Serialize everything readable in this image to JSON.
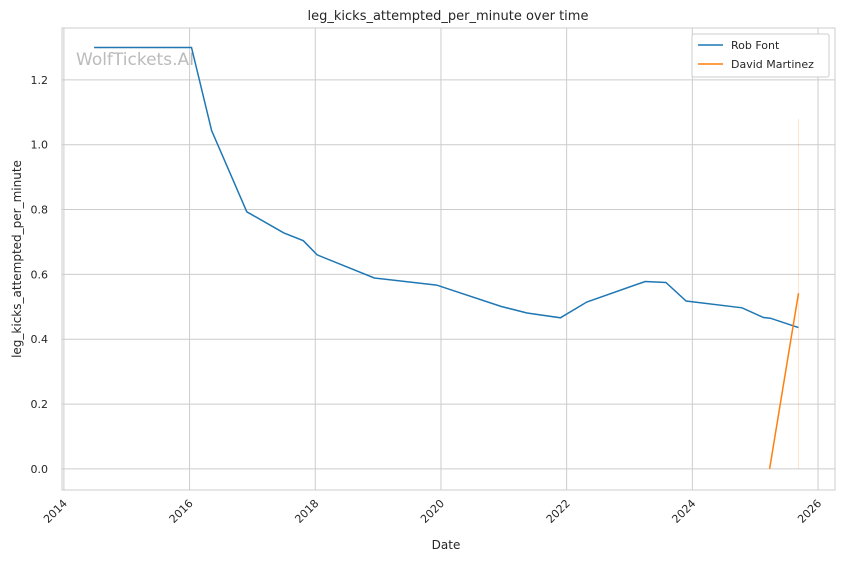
{
  "chart_data": {
    "type": "line",
    "title": "leg_kicks_attempted_per_minute over time",
    "xlabel": "Date",
    "ylabel": "leg_kicks_attempted_per_minute",
    "watermark": "WolfTickets.AI",
    "xlim": [
      2013.97,
      2026.27
    ],
    "ylim": [
      -0.065,
      1.36
    ],
    "xticks": [
      2014,
      2016,
      2018,
      2020,
      2022,
      2024,
      2026
    ],
    "xtick_labels": [
      "2014",
      "2016",
      "2018",
      "2020",
      "2022",
      "2024",
      "2026"
    ],
    "yticks": [
      0.0,
      0.2,
      0.4,
      0.6,
      0.8,
      1.0,
      1.2
    ],
    "ytick_labels": [
      "0.0",
      "0.2",
      "0.4",
      "0.6",
      "0.8",
      "1.0",
      "1.2"
    ],
    "grid": true,
    "legend_position": "top-right",
    "series": [
      {
        "name": "Rob Font",
        "color": "#1f77b4",
        "x": [
          2014.48,
          2016.03,
          2016.35,
          2016.91,
          2017.5,
          2017.81,
          2018.03,
          2018.94,
          2019.93,
          2020.96,
          2021.37,
          2021.9,
          2022.32,
          2023.25,
          2023.58,
          2023.9,
          2024.79,
          2025.13,
          2025.24,
          2025.69
        ],
        "y": [
          1.3,
          1.3,
          1.044,
          0.793,
          0.728,
          0.704,
          0.66,
          0.589,
          0.567,
          0.501,
          0.481,
          0.466,
          0.515,
          0.578,
          0.575,
          0.518,
          0.497,
          0.467,
          0.465,
          0.436
        ]
      },
      {
        "name": "David Martinez",
        "color": "#ff7f0e",
        "x": [
          2025.23,
          2025.69
        ],
        "y": [
          0.0,
          0.542
        ],
        "faint_vertical": {
          "x": 2025.69,
          "y": [
            0.0,
            1.08
          ]
        }
      }
    ]
  }
}
